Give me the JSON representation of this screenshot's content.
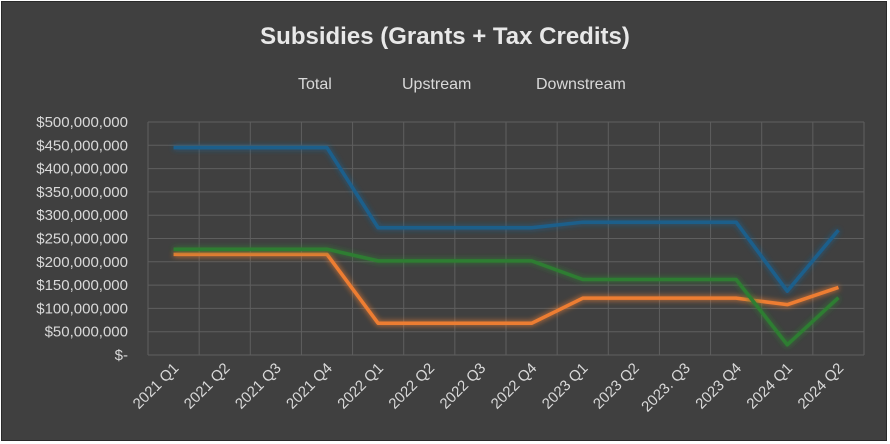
{
  "chart_data": {
    "type": "line",
    "title": "Subsidies (Grants + Tax Credits)",
    "xlabel": "",
    "ylabel": "",
    "categories": [
      "2021 Q1",
      "2021 Q2",
      "2021 Q3",
      "2021 Q4",
      "2022 Q1",
      "2022 Q2",
      "2022 Q3",
      "2022 Q4",
      "2023 Q1",
      "2023 Q2",
      "2023. Q3",
      "2023 Q4",
      "2024 Q1",
      "2024 Q2"
    ],
    "ylim": [
      0,
      500000000
    ],
    "yticks": [
      0,
      50000000,
      100000000,
      150000000,
      200000000,
      250000000,
      300000000,
      350000000,
      400000000,
      450000000,
      500000000
    ],
    "ytick_labels": [
      "$-",
      "$50,000,000",
      "$100,000,000",
      "$150,000,000",
      "$200,000,000",
      "$250,000,000",
      "$300,000,000",
      "$350,000,000",
      "$400,000,000",
      "$450,000,000",
      "$500,000,000"
    ],
    "grid": true,
    "legend_position": "top",
    "series": [
      {
        "name": "Total",
        "color": "#1f5f8b",
        "values": [
          445000000,
          445000000,
          445000000,
          445000000,
          273000000,
          273000000,
          273000000,
          273000000,
          285000000,
          285000000,
          285000000,
          285000000,
          137000000,
          268000000
        ]
      },
      {
        "name": "Upstream",
        "color": "#ed7d31",
        "values": [
          216000000,
          216000000,
          216000000,
          216000000,
          68000000,
          68000000,
          68000000,
          68000000,
          122000000,
          122000000,
          122000000,
          122000000,
          108000000,
          145000000
        ]
      },
      {
        "name": "Downstream",
        "color": "#2e7d32",
        "values": [
          227000000,
          227000000,
          227000000,
          227000000,
          202000000,
          202000000,
          202000000,
          202000000,
          162000000,
          162000000,
          162000000,
          162000000,
          22000000,
          123000000
        ]
      }
    ]
  }
}
